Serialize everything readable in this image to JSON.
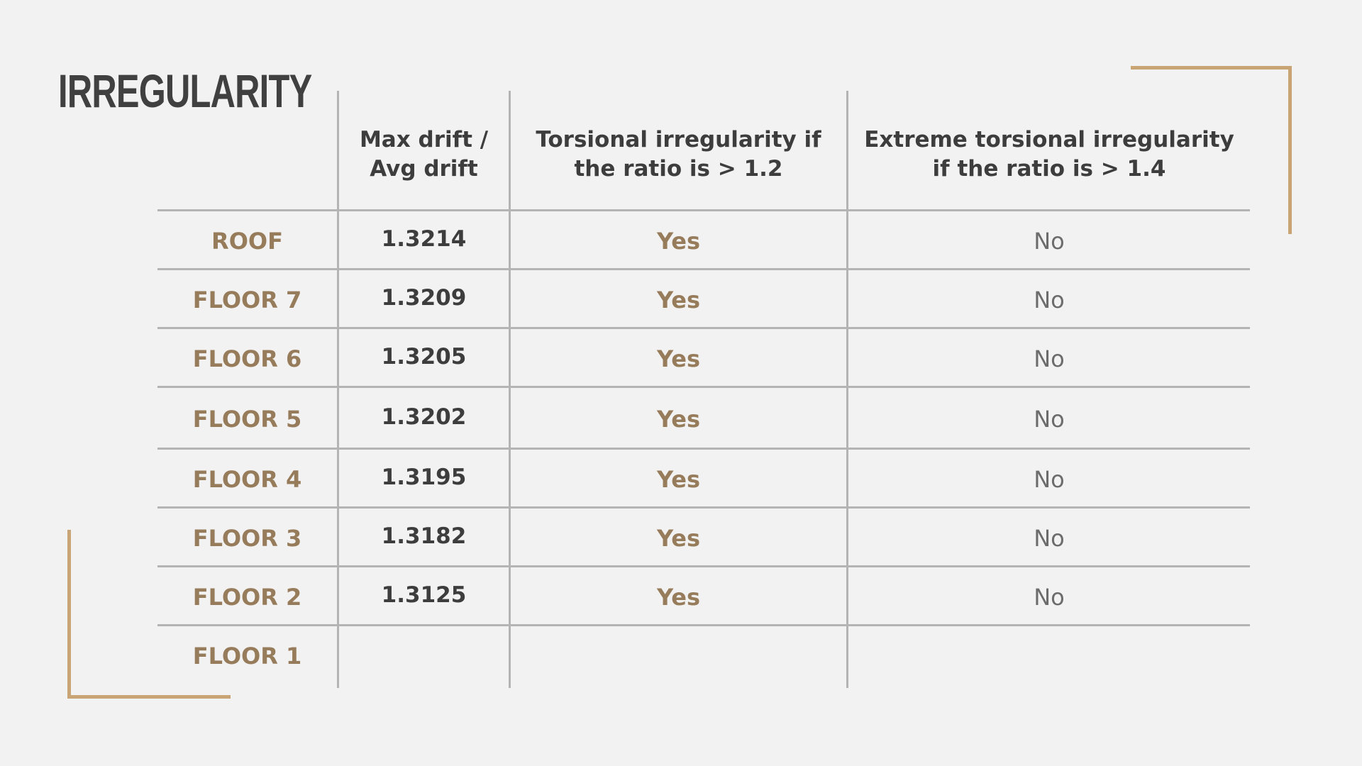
{
  "title": "IRREGULARITY",
  "accent_color": "#c9a576",
  "label_color": "#977c5b",
  "table": {
    "headers": {
      "max_avg": [
        "Max drift /",
        "Avg drift"
      ],
      "torsional": [
        "Torsional irregularity if",
        "the ratio is > 1.2"
      ],
      "extreme": [
        "Extreme torsional irregularity",
        "if the ratio is > 1.4"
      ]
    },
    "rows": [
      {
        "label": "ROOF",
        "ratio": "1.3214",
        "torsional": "Yes",
        "extreme": "No"
      },
      {
        "label": "FLOOR 7",
        "ratio": "1.3209",
        "torsional": "Yes",
        "extreme": "No"
      },
      {
        "label": "FLOOR 6",
        "ratio": "1.3205",
        "torsional": "Yes",
        "extreme": "No"
      },
      {
        "label": "FLOOR 5",
        "ratio": "1.3202",
        "torsional": "Yes",
        "extreme": "No"
      },
      {
        "label": "FLOOR 4",
        "ratio": "1.3195",
        "torsional": "Yes",
        "extreme": "No"
      },
      {
        "label": "FLOOR 3",
        "ratio": "1.3182",
        "torsional": "Yes",
        "extreme": "No"
      },
      {
        "label": "FLOOR 2",
        "ratio": "1.3125",
        "torsional": "Yes",
        "extreme": "No"
      },
      {
        "label": "FLOOR 1",
        "ratio": "",
        "torsional": "",
        "extreme": ""
      }
    ]
  }
}
